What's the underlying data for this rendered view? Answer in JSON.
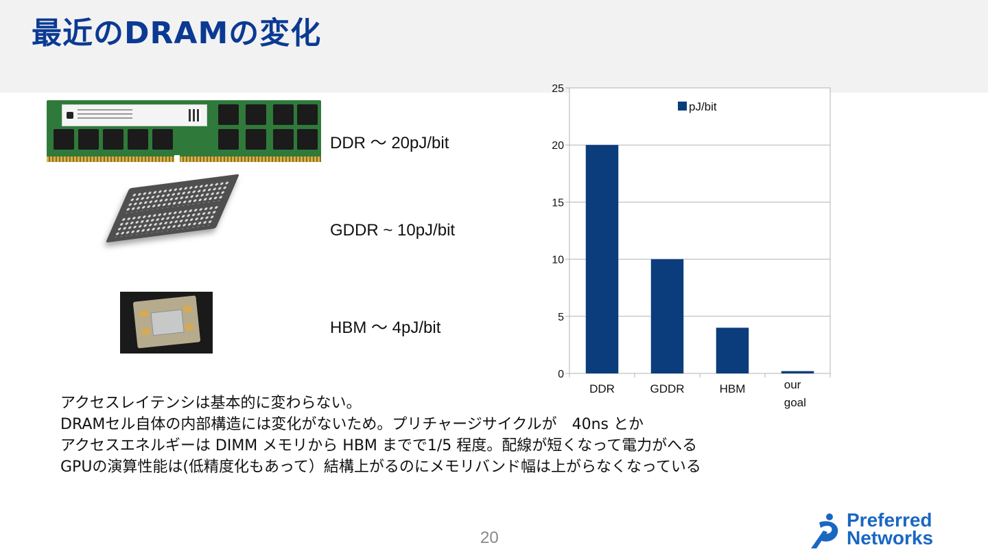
{
  "slide": {
    "title": "最近のDRAMの変化",
    "page_number": "20"
  },
  "memory_types": [
    {
      "text": "DDR 〜 20pJ/bit"
    },
    {
      "text": "GDDR ~ 10pJ/bit"
    },
    {
      "text": "HBM 〜 4pJ/bit"
    }
  ],
  "notes": [
    "アクセスレイテンシは基本的に変わらない。",
    "DRAMセル自体の内部構造には変化がないため。プリチャージサイクルが　40ns とか",
    "アクセスエネルギーは DIMM メモリから HBM までで1/5 程度。配線が短くなって電力がへる",
    "GPUの演算性能は(低精度化もあって）結構上がるのにメモリバンド幅は上がらなくなっている"
  ],
  "brand": {
    "line1": "Preferred",
    "line2": "Networks",
    "color": "#1a67c2"
  },
  "chart_data": {
    "type": "bar",
    "categories": [
      "DDR",
      "GDDR",
      "HBM",
      "our goal"
    ],
    "series": [
      {
        "name": "pJ/bit",
        "values": [
          20,
          10,
          4,
          0.2
        ]
      }
    ],
    "ylim": [
      0,
      25
    ],
    "yticks": [
      0,
      5,
      10,
      15,
      20,
      25
    ],
    "grid": true,
    "legend": "top",
    "bar_color": "#0b3c7c"
  }
}
